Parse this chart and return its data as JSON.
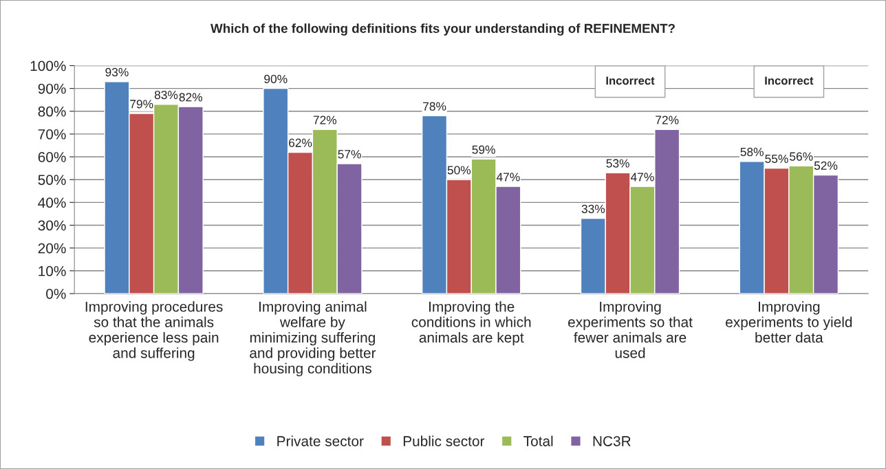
{
  "chart_data": {
    "type": "bar",
    "title": "Which of the following definitions fits your understanding of REFINEMENT?",
    "categories": [
      "Improving procedures so that the animals experience less pain and suffering",
      "Improving animal welfare by minimizing suffering and providing better housing conditions",
      "Improving the conditions in which animals are kept",
      "Improving experiments so that fewer animals are used",
      "Improving experiments to yield better data"
    ],
    "series": [
      {
        "name": "Private sector",
        "color": "#4f81bd",
        "values": [
          93,
          90,
          78,
          33,
          58
        ],
        "value_labels": [
          "93%",
          "90%",
          "78%",
          "33%",
          "58%"
        ]
      },
      {
        "name": "Public sector",
        "color": "#c0504d",
        "values": [
          79,
          62,
          50,
          53,
          55
        ],
        "value_labels": [
          "79%",
          "62%",
          "50%",
          "53%",
          "55%"
        ]
      },
      {
        "name": "Total",
        "color": "#9bbb59",
        "values": [
          83,
          72,
          59,
          47,
          56
        ],
        "value_labels": [
          "83%",
          "72%",
          "59%",
          "47%",
          "56%"
        ]
      },
      {
        "name": "NC3R",
        "color": "#8064a2",
        "values": [
          82,
          57,
          47,
          72,
          52
        ],
        "value_labels": [
          "82%",
          "57%",
          "47%",
          "72%",
          "52%"
        ]
      }
    ],
    "annotations": [
      "Incorrect",
      "Incorrect"
    ],
    "ylim": [
      0,
      100
    ],
    "yticks": [
      {
        "value": 0,
        "label": "0%"
      },
      {
        "value": 10,
        "label": "10%"
      },
      {
        "value": 20,
        "label": "20%"
      },
      {
        "value": 30,
        "label": "30%"
      },
      {
        "value": 40,
        "label": "40%"
      },
      {
        "value": 50,
        "label": "50%"
      },
      {
        "value": 60,
        "label": "60%"
      },
      {
        "value": 70,
        "label": "70%"
      },
      {
        "value": 80,
        "label": "80%"
      },
      {
        "value": 90,
        "label": "90%"
      },
      {
        "value": 100,
        "label": "100%"
      }
    ],
    "grid": "y",
    "legend": "bottom"
  }
}
